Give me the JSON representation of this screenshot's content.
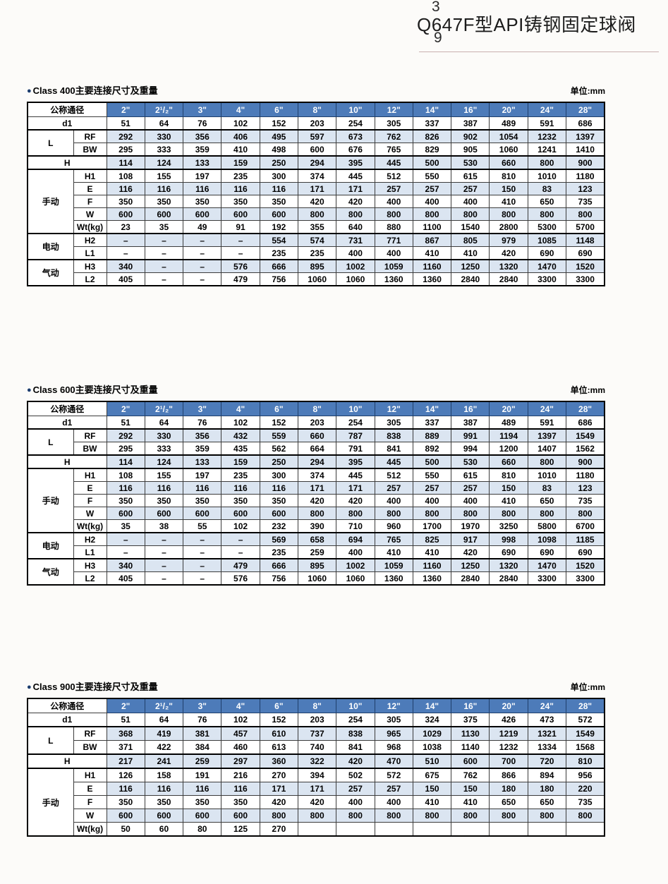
{
  "header": {
    "page_digit_top": "3",
    "title": "Q647F型API铸钢固定球阀",
    "page_digit_bottom": "9"
  },
  "tables": [
    {
      "bullet": "●",
      "title": "Class 400主要连接尺寸及重量",
      "unit": "单位:mm",
      "corner_label": "公称通径",
      "columns": [
        "2\"",
        "2¹/₂\"",
        "3\"",
        "4\"",
        "6\"",
        "8\"",
        "10\"",
        "12\"",
        "14\"",
        "16\"",
        "20\"",
        "24\"",
        "28\""
      ],
      "rows": [
        {
          "label": "d1",
          "full": true,
          "values": [
            "51",
            "64",
            "76",
            "102",
            "152",
            "203",
            "254",
            "305",
            "337",
            "387",
            "489",
            "591",
            "686"
          ]
        },
        {
          "group": "L",
          "group_rowspan": 2,
          "thick": true,
          "label": "RF",
          "values": [
            "292",
            "330",
            "356",
            "406",
            "495",
            "597",
            "673",
            "762",
            "826",
            "902",
            "1054",
            "1232",
            "1397"
          ]
        },
        {
          "label": "BW",
          "values": [
            "295",
            "333",
            "359",
            "410",
            "498",
            "600",
            "676",
            "765",
            "829",
            "905",
            "1060",
            "1241",
            "1410"
          ]
        },
        {
          "label": "H",
          "full": true,
          "thick": true,
          "values": [
            "114",
            "124",
            "133",
            "159",
            "250",
            "294",
            "395",
            "445",
            "500",
            "530",
            "660",
            "800",
            "900"
          ]
        },
        {
          "group": "手动",
          "group_rowspan": 5,
          "thick": true,
          "label": "H1",
          "values": [
            "108",
            "155",
            "197",
            "235",
            "300",
            "374",
            "445",
            "512",
            "550",
            "615",
            "810",
            "1010",
            "1180"
          ]
        },
        {
          "label": "E",
          "values": [
            "116",
            "116",
            "116",
            "116",
            "116",
            "171",
            "171",
            "257",
            "257",
            "257",
            "150",
            "83",
            "123"
          ]
        },
        {
          "label": "F",
          "values": [
            "350",
            "350",
            "350",
            "350",
            "350",
            "420",
            "420",
            "400",
            "400",
            "400",
            "410",
            "650",
            "735"
          ]
        },
        {
          "label": "W",
          "values": [
            "600",
            "600",
            "600",
            "600",
            "600",
            "800",
            "800",
            "800",
            "800",
            "800",
            "800",
            "800",
            "800"
          ]
        },
        {
          "label": "Wt(kg)",
          "values": [
            "23",
            "35",
            "49",
            "91",
            "192",
            "355",
            "640",
            "880",
            "1100",
            "1540",
            "2800",
            "5300",
            "5700"
          ]
        },
        {
          "group": "电动",
          "group_rowspan": 2,
          "thick": true,
          "label": "H2",
          "values": [
            "–",
            "–",
            "–",
            "–",
            "554",
            "574",
            "731",
            "771",
            "867",
            "805",
            "979",
            "1085",
            "1148"
          ]
        },
        {
          "label": "L1",
          "values": [
            "–",
            "–",
            "–",
            "–",
            "235",
            "235",
            "400",
            "400",
            "410",
            "410",
            "420",
            "690",
            "690"
          ]
        },
        {
          "group": "气动",
          "group_rowspan": 2,
          "thick": true,
          "label": "H3",
          "values": [
            "340",
            "–",
            "–",
            "576",
            "666",
            "895",
            "1002",
            "1059",
            "1160",
            "1250",
            "1320",
            "1470",
            "1520"
          ]
        },
        {
          "label": "L2",
          "values": [
            "405",
            "–",
            "–",
            "479",
            "756",
            "1060",
            "1060",
            "1360",
            "1360",
            "2840",
            "2840",
            "3300",
            "3300"
          ]
        }
      ]
    },
    {
      "bullet": "●",
      "title": "Class 600主要连接尺寸及重量",
      "unit": "单位:mm",
      "corner_label": "公称通径",
      "columns": [
        "2\"",
        "2¹/₂\"",
        "3\"",
        "4\"",
        "6\"",
        "8\"",
        "10\"",
        "12\"",
        "14\"",
        "16\"",
        "20\"",
        "24\"",
        "28\""
      ],
      "rows": [
        {
          "label": "d1",
          "full": true,
          "values": [
            "51",
            "64",
            "76",
            "102",
            "152",
            "203",
            "254",
            "305",
            "337",
            "387",
            "489",
            "591",
            "686"
          ]
        },
        {
          "group": "L",
          "group_rowspan": 2,
          "thick": true,
          "label": "RF",
          "values": [
            "292",
            "330",
            "356",
            "432",
            "559",
            "660",
            "787",
            "838",
            "889",
            "991",
            "1194",
            "1397",
            "1549"
          ]
        },
        {
          "label": "BW",
          "values": [
            "295",
            "333",
            "359",
            "435",
            "562",
            "664",
            "791",
            "841",
            "892",
            "994",
            "1200",
            "1407",
            "1562"
          ]
        },
        {
          "label": "H",
          "full": true,
          "thick": true,
          "values": [
            "114",
            "124",
            "133",
            "159",
            "250",
            "294",
            "395",
            "445",
            "500",
            "530",
            "660",
            "800",
            "900"
          ]
        },
        {
          "group": "手动",
          "group_rowspan": 5,
          "thick": true,
          "label": "H1",
          "values": [
            "108",
            "155",
            "197",
            "235",
            "300",
            "374",
            "445",
            "512",
            "550",
            "615",
            "810",
            "1010",
            "1180"
          ]
        },
        {
          "label": "E",
          "values": [
            "116",
            "116",
            "116",
            "116",
            "116",
            "171",
            "171",
            "257",
            "257",
            "257",
            "150",
            "83",
            "123"
          ]
        },
        {
          "label": "F",
          "values": [
            "350",
            "350",
            "350",
            "350",
            "350",
            "420",
            "420",
            "400",
            "400",
            "400",
            "410",
            "650",
            "735"
          ]
        },
        {
          "label": "W",
          "values": [
            "600",
            "600",
            "600",
            "600",
            "600",
            "800",
            "800",
            "800",
            "800",
            "800",
            "800",
            "800",
            "800"
          ]
        },
        {
          "label": "Wt(kg)",
          "values": [
            "35",
            "38",
            "55",
            "102",
            "232",
            "390",
            "710",
            "960",
            "1700",
            "1970",
            "3250",
            "5800",
            "6700"
          ]
        },
        {
          "group": "电动",
          "group_rowspan": 2,
          "thick": true,
          "label": "H2",
          "values": [
            "–",
            "–",
            "–",
            "–",
            "569",
            "658",
            "694",
            "765",
            "825",
            "917",
            "998",
            "1098",
            "1185"
          ]
        },
        {
          "label": "L1",
          "values": [
            "–",
            "–",
            "–",
            "–",
            "235",
            "259",
            "400",
            "410",
            "410",
            "420",
            "690",
            "690",
            "690"
          ]
        },
        {
          "group": "气动",
          "group_rowspan": 2,
          "thick": true,
          "label": "H3",
          "values": [
            "340",
            "–",
            "–",
            "479",
            "666",
            "895",
            "1002",
            "1059",
            "1160",
            "1250",
            "1320",
            "1470",
            "1520"
          ]
        },
        {
          "label": "L2",
          "values": [
            "405",
            "–",
            "–",
            "576",
            "756",
            "1060",
            "1060",
            "1360",
            "1360",
            "2840",
            "2840",
            "3300",
            "3300"
          ]
        }
      ]
    },
    {
      "bullet": "●",
      "title": "Class 900主要连接尺寸及重量",
      "unit": "单位:mm",
      "corner_label": "公称通径",
      "columns": [
        "2\"",
        "2¹/₂\"",
        "3\"",
        "4\"",
        "6\"",
        "8\"",
        "10\"",
        "12\"",
        "14\"",
        "16\"",
        "20\"",
        "24\"",
        "28\""
      ],
      "rows": [
        {
          "label": "d1",
          "full": true,
          "values": [
            "51",
            "64",
            "76",
            "102",
            "152",
            "203",
            "254",
            "305",
            "324",
            "375",
            "426",
            "473",
            "572"
          ]
        },
        {
          "group": "L",
          "group_rowspan": 2,
          "thick": true,
          "label": "RF",
          "values": [
            "368",
            "419",
            "381",
            "457",
            "610",
            "737",
            "838",
            "965",
            "1029",
            "1130",
            "1219",
            "1321",
            "1549"
          ]
        },
        {
          "label": "BW",
          "values": [
            "371",
            "422",
            "384",
            "460",
            "613",
            "740",
            "841",
            "968",
            "1038",
            "1140",
            "1232",
            "1334",
            "1568"
          ]
        },
        {
          "label": "H",
          "full": true,
          "thick": true,
          "values": [
            "217",
            "241",
            "259",
            "297",
            "360",
            "322",
            "420",
            "470",
            "510",
            "600",
            "700",
            "720",
            "810"
          ]
        },
        {
          "group": "手动",
          "group_rowspan": 5,
          "thick": true,
          "label": "H1",
          "values": [
            "126",
            "158",
            "191",
            "216",
            "270",
            "394",
            "502",
            "572",
            "675",
            "762",
            "866",
            "894",
            "956"
          ]
        },
        {
          "label": "E",
          "values": [
            "116",
            "116",
            "116",
            "116",
            "171",
            "171",
            "257",
            "257",
            "150",
            "150",
            "180",
            "180",
            "220"
          ]
        },
        {
          "label": "F",
          "values": [
            "350",
            "350",
            "350",
            "350",
            "420",
            "420",
            "400",
            "400",
            "410",
            "410",
            "650",
            "650",
            "735"
          ]
        },
        {
          "label": "W",
          "values": [
            "600",
            "600",
            "600",
            "600",
            "800",
            "800",
            "800",
            "800",
            "800",
            "800",
            "800",
            "800",
            "800"
          ]
        },
        {
          "label": "Wt(kg)",
          "values": [
            "50",
            "60",
            "80",
            "125",
            "270",
            "",
            "",
            "",
            "",
            "",
            "",
            "",
            ""
          ]
        }
      ]
    }
  ]
}
